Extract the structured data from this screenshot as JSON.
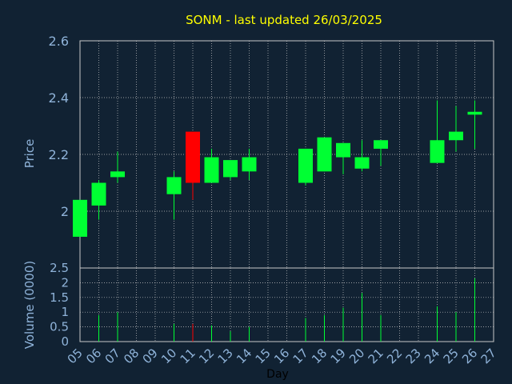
{
  "title": "SONM - last updated 26/03/2025",
  "colors": {
    "background": "#112233",
    "title": "#ffff00",
    "axis_text": "#8fb3d9",
    "grid": "#c8c8c8",
    "up": "#00ff33",
    "down": "#ff0000"
  },
  "chart_data": [
    {
      "type": "candlestick",
      "ylabel": "Price",
      "ylim": [
        1.8,
        2.6
      ],
      "yticks": [
        "2",
        "2.2",
        "2.4",
        "2.6"
      ],
      "grid": true,
      "days": [
        "05",
        "06",
        "07",
        "08",
        "09",
        "10",
        "11",
        "12",
        "13",
        "14",
        "15",
        "16",
        "17",
        "18",
        "19",
        "20",
        "21",
        "22",
        "23",
        "24",
        "25",
        "26",
        "27"
      ],
      "candles": [
        {
          "day": "05",
          "open": 1.91,
          "close": 2.04,
          "high": 2.04,
          "low": 1.91,
          "dir": "up"
        },
        {
          "day": "06",
          "open": 2.02,
          "close": 2.1,
          "high": 2.11,
          "low": 1.97,
          "dir": "up"
        },
        {
          "day": "07",
          "open": 2.12,
          "close": 2.14,
          "high": 2.21,
          "low": 2.1,
          "dir": "up"
        },
        {
          "day": "10",
          "open": 2.06,
          "close": 2.12,
          "high": 2.14,
          "low": 1.97,
          "dir": "up"
        },
        {
          "day": "11",
          "open": 2.28,
          "close": 2.1,
          "high": 2.28,
          "low": 2.04,
          "dir": "down"
        },
        {
          "day": "12",
          "open": 2.1,
          "close": 2.19,
          "high": 2.22,
          "low": 2.1,
          "dir": "up"
        },
        {
          "day": "13",
          "open": 2.12,
          "close": 2.18,
          "high": 2.18,
          "low": 2.11,
          "dir": "up"
        },
        {
          "day": "14",
          "open": 2.14,
          "close": 2.19,
          "high": 2.22,
          "low": 2.11,
          "dir": "up"
        },
        {
          "day": "17",
          "open": 2.1,
          "close": 2.22,
          "high": 2.22,
          "low": 2.09,
          "dir": "up"
        },
        {
          "day": "18",
          "open": 2.14,
          "close": 2.26,
          "high": 2.26,
          "low": 2.14,
          "dir": "up"
        },
        {
          "day": "19",
          "open": 2.19,
          "close": 2.24,
          "high": 2.24,
          "low": 2.13,
          "dir": "up"
        },
        {
          "day": "20",
          "open": 2.15,
          "close": 2.19,
          "high": 2.25,
          "low": 2.14,
          "dir": "up"
        },
        {
          "day": "21",
          "open": 2.22,
          "close": 2.25,
          "high": 2.25,
          "low": 2.16,
          "dir": "up"
        },
        {
          "day": "24",
          "open": 2.17,
          "close": 2.25,
          "high": 2.39,
          "low": 2.17,
          "dir": "up"
        },
        {
          "day": "25",
          "open": 2.25,
          "close": 2.28,
          "high": 2.37,
          "low": 2.21,
          "dir": "up"
        },
        {
          "day": "26",
          "open": 2.34,
          "close": 2.35,
          "high": 2.39,
          "low": 2.22,
          "dir": "up"
        }
      ]
    },
    {
      "type": "bar",
      "ylabel": "Volume (0000)",
      "xlabel": "Day",
      "ylim": [
        0,
        2.5
      ],
      "yticks": [
        "0",
        "0.5",
        "1",
        "1.5",
        "2",
        "2.5"
      ],
      "grid": true,
      "categories": [
        "06",
        "07",
        "10",
        "11",
        "12",
        "13",
        "14",
        "17",
        "18",
        "19",
        "20",
        "21",
        "24",
        "25",
        "26"
      ],
      "values": [
        0.9,
        1.0,
        0.6,
        0.6,
        0.55,
        0.35,
        0.5,
        0.8,
        0.9,
        1.15,
        1.65,
        0.9,
        1.2,
        1.0,
        2.15
      ],
      "colors": [
        "up",
        "up",
        "up",
        "down",
        "up",
        "up",
        "up",
        "up",
        "up",
        "up",
        "up",
        "up",
        "up",
        "up",
        "up"
      ]
    }
  ]
}
